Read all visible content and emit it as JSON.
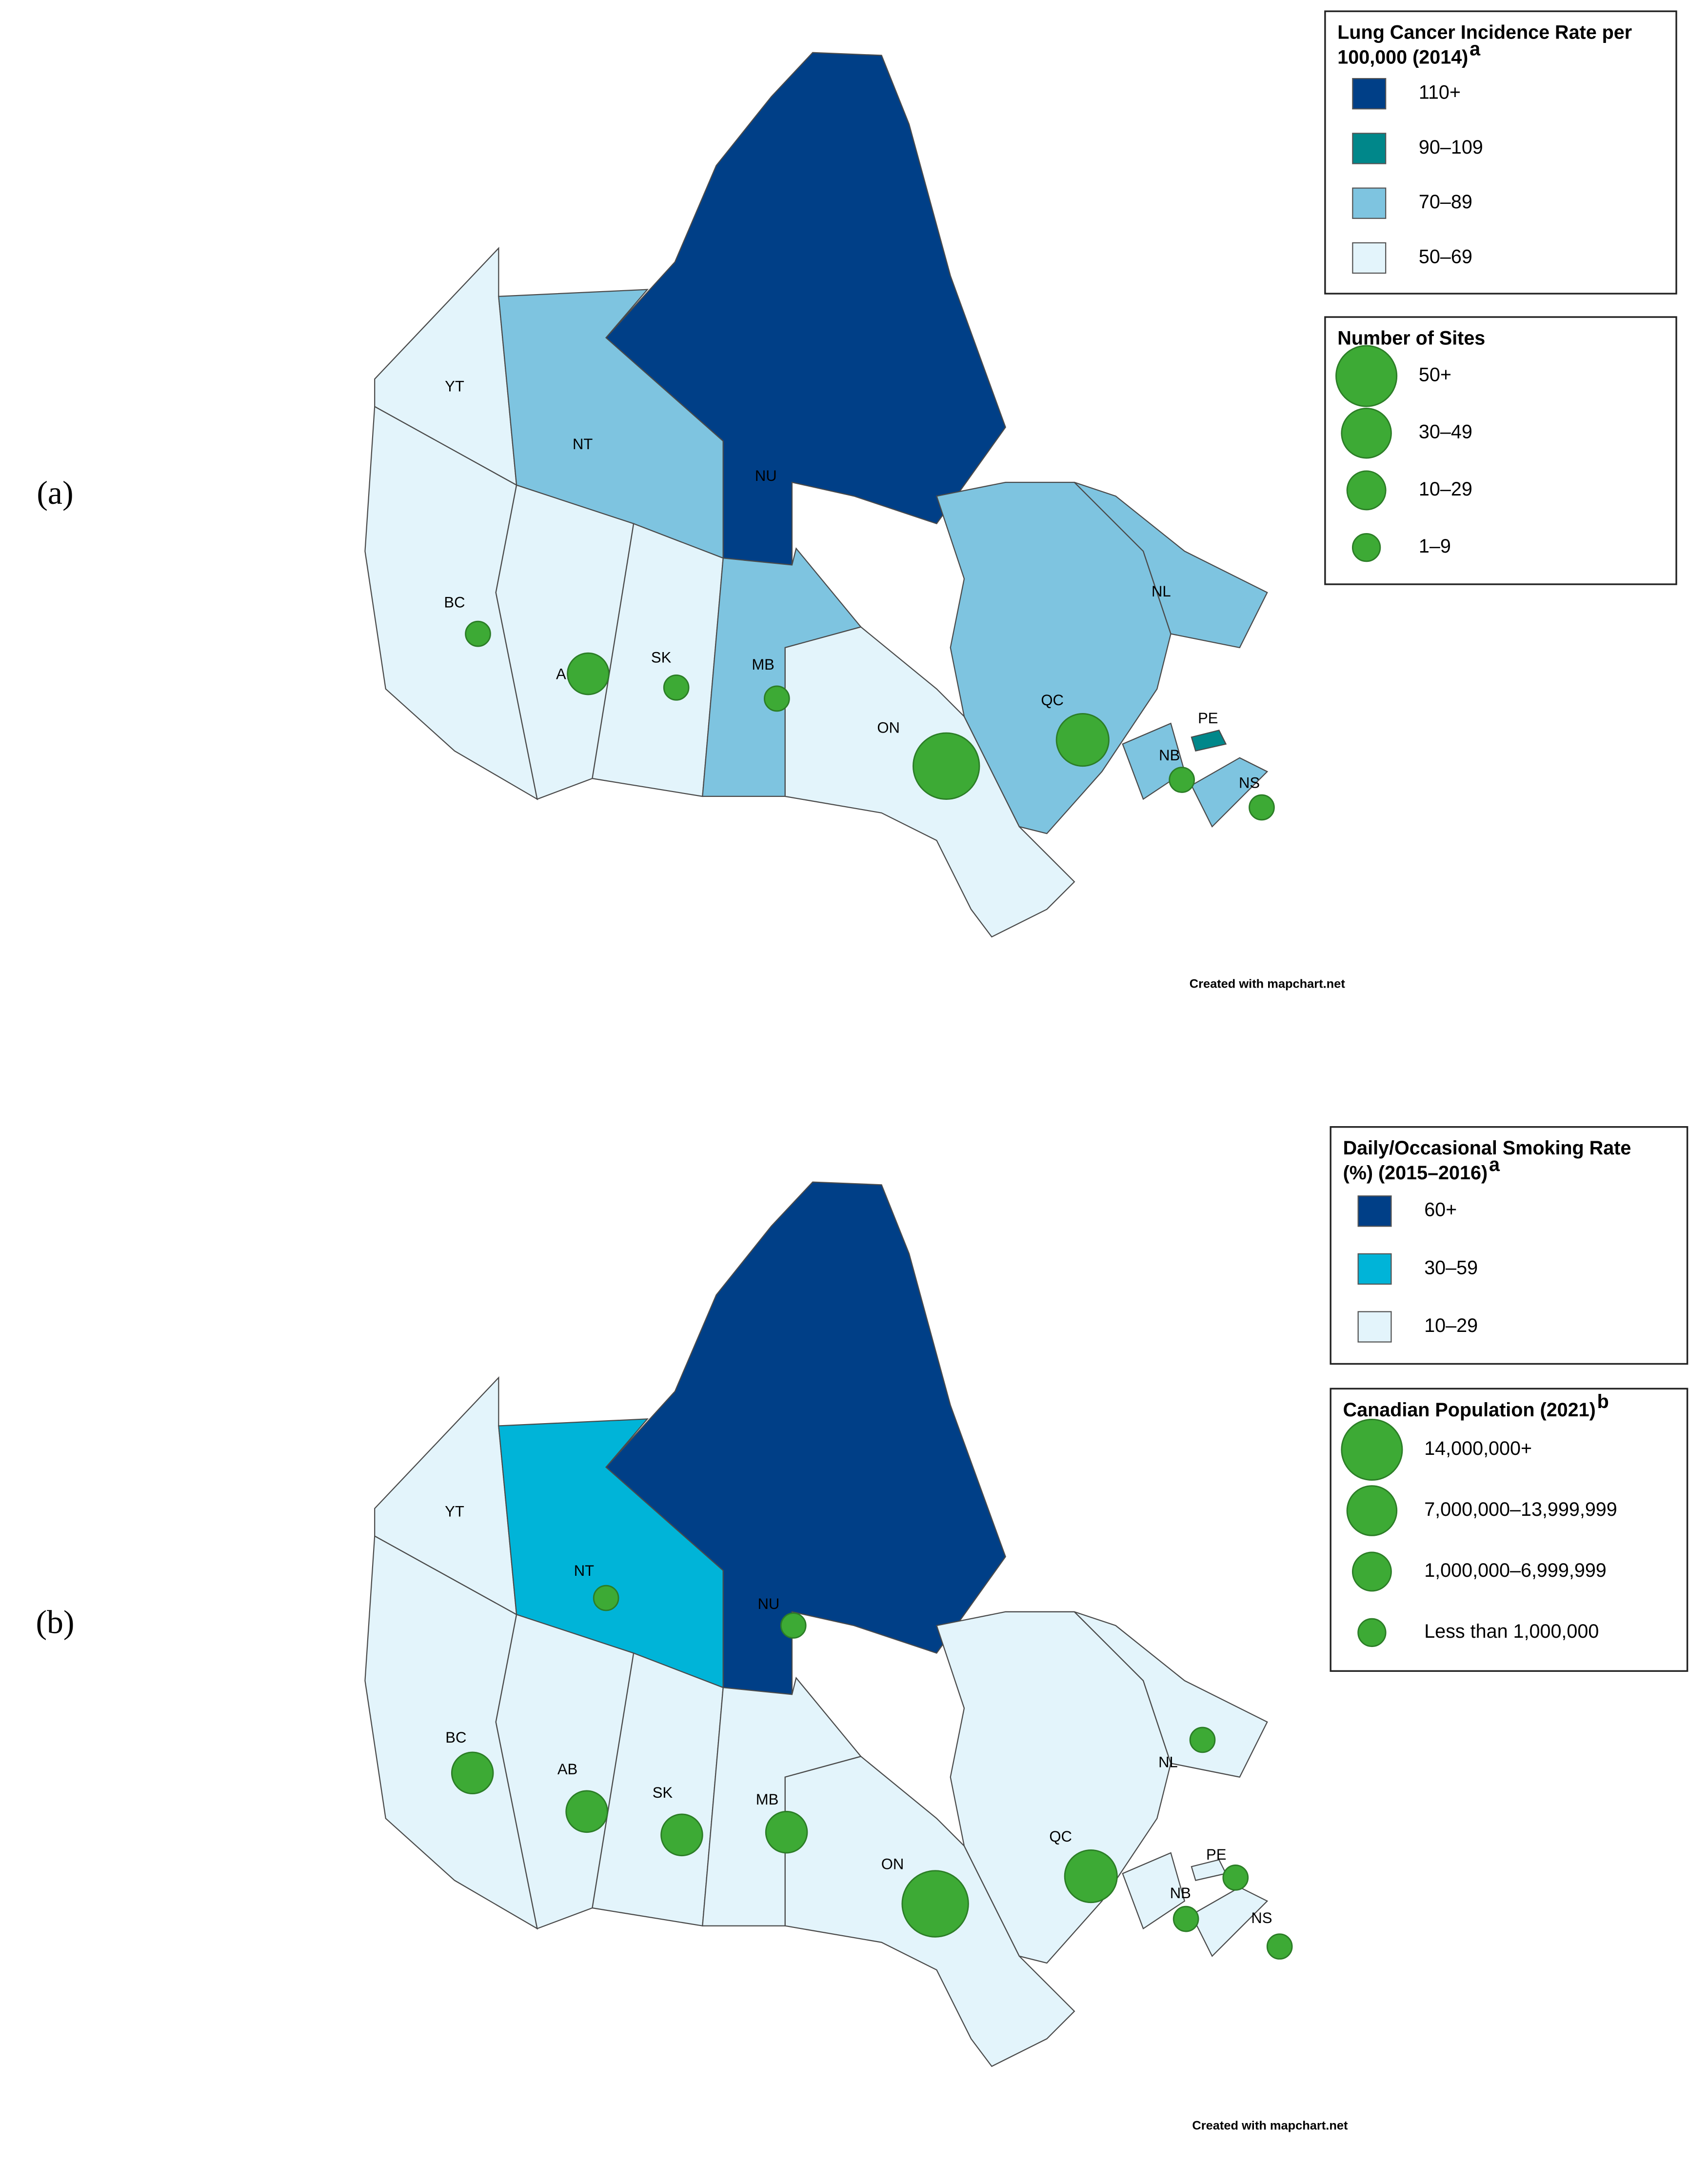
{
  "figure": {
    "panels": [
      {
        "label": "(a)",
        "credit": "Created with mapchart.net",
        "color_legend": {
          "title_lines": [
            "Lung Cancer Incidence Rate per",
            "100,000 (2014)"
          ],
          "superscript": "a",
          "entries": [
            {
              "label": "110+",
              "color": "#003f87"
            },
            {
              "label": "90–109",
              "color": "#00878a"
            },
            {
              "label": "70–89",
              "color": "#7ec4e0"
            },
            {
              "label": "50–69",
              "color": "#e3f4fb"
            }
          ]
        },
        "size_legend": {
          "title_lines": [
            "Number of Sites"
          ],
          "entries": [
            {
              "label": "50+"
            },
            {
              "label": "30–49"
            },
            {
              "label": "10–29"
            },
            {
              "label": "1–9"
            }
          ]
        },
        "regions": [
          {
            "label": "YT",
            "rate": "50–69"
          },
          {
            "label": "NT",
            "rate": "70–89"
          },
          {
            "label": "NU",
            "rate": "110+"
          },
          {
            "label": "BC",
            "rate": "50–69",
            "size": "1–9"
          },
          {
            "label": "AB",
            "rate": "50–69",
            "size": "10–29"
          },
          {
            "label": "SK",
            "rate": "50–69",
            "size": "1–9"
          },
          {
            "label": "MB",
            "rate": "70–89",
            "size": "1–9"
          },
          {
            "label": "ON",
            "rate": "50–69",
            "size": "50+"
          },
          {
            "label": "QC",
            "rate": "70–89",
            "size": "30–49"
          },
          {
            "label": "NL",
            "rate": "70–89"
          },
          {
            "label": "NB",
            "rate": "70–89",
            "size": "1–9"
          },
          {
            "label": "PE",
            "rate": "90–109"
          },
          {
            "label": "NS",
            "rate": "70–89",
            "size": "1–9"
          }
        ]
      },
      {
        "label": "(b)",
        "credit": "Created with mapchart.net",
        "color_legend": {
          "title_lines": [
            "Daily/Occasional Smoking Rate",
            "(%) (2015–2016)"
          ],
          "superscript": "a",
          "entries": [
            {
              "label": "60+",
              "color": "#003f87"
            },
            {
              "label": "30–59",
              "color": "#00b4d8"
            },
            {
              "label": "10–29",
              "color": "#e3f4fb"
            }
          ]
        },
        "size_legend": {
          "title_lines": [
            "Canadian Population (2021)"
          ],
          "superscript": "b",
          "entries": [
            {
              "label": "14,000,000+"
            },
            {
              "label": "7,000,000–13,999,999"
            },
            {
              "label": "1,000,000–6,999,999"
            },
            {
              "label": "Less than 1,000,000"
            }
          ]
        },
        "regions": [
          {
            "label": "YT",
            "rate": "10–29"
          },
          {
            "label": "NT",
            "rate": "30–59",
            "size": "Less than 1,000,000"
          },
          {
            "label": "NU",
            "rate": "60+",
            "size": "Less than 1,000,000"
          },
          {
            "label": "BC",
            "rate": "10–29",
            "size": "1,000,000–6,999,999"
          },
          {
            "label": "AB",
            "rate": "10–29",
            "size": "1,000,000–6,999,999"
          },
          {
            "label": "SK",
            "rate": "10–29",
            "size": "1,000,000–6,999,999"
          },
          {
            "label": "MB",
            "rate": "10–29",
            "size": "1,000,000–6,999,999"
          },
          {
            "label": "ON",
            "rate": "10–29",
            "size": "14,000,000+"
          },
          {
            "label": "QC",
            "rate": "10–29",
            "size": "7,000,000–13,999,999"
          },
          {
            "label": "NL",
            "rate": "10–29",
            "size": "Less than 1,000,000"
          },
          {
            "label": "NB",
            "rate": "10–29",
            "size": "Less than 1,000,000"
          },
          {
            "label": "PE",
            "rate": "10–29",
            "size": "Less than 1,000,000"
          },
          {
            "label": "NS",
            "rate": "10–29",
            "size": "Less than 1,000,000"
          }
        ]
      }
    ]
  }
}
